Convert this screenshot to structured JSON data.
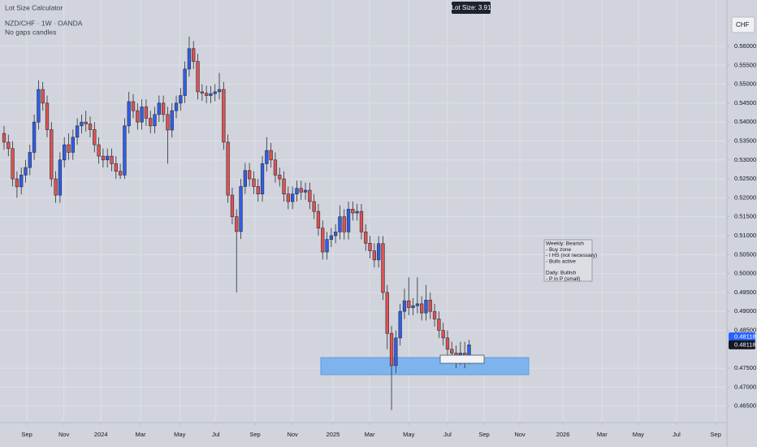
{
  "chart_data": {
    "type": "candlestick",
    "indicator": "Lot Size Calculator",
    "symbol": "NZD/CHF · 1W · OANDA",
    "subtitle": "No gaps candles",
    "lot_size_label": "Lot Size: 3.91",
    "currency": "CHF",
    "last_price": 0.48118,
    "up_color": "#2f5ee8",
    "down_color": "#e05252",
    "grid": true,
    "ylim": [
      0.46064,
      0.57223
    ],
    "yticks": [
      {
        "value": 0.465,
        "label": "0.46500"
      },
      {
        "value": 0.47,
        "label": "0.47000"
      },
      {
        "value": 0.475,
        "label": "0.47500"
      },
      {
        "value": 0.485,
        "label": "0.48500"
      },
      {
        "value": 0.49,
        "label": "0.49000"
      },
      {
        "value": 0.495,
        "label": "0.49500"
      },
      {
        "value": 0.5,
        "label": "0.50000"
      },
      {
        "value": 0.505,
        "label": "0.50500"
      },
      {
        "value": 0.51,
        "label": "0.51000"
      },
      {
        "value": 0.515,
        "label": "0.51500"
      },
      {
        "value": 0.52,
        "label": "0.52000"
      },
      {
        "value": 0.525,
        "label": "0.52500"
      },
      {
        "value": 0.53,
        "label": "0.53000"
      },
      {
        "value": 0.535,
        "label": "0.53500"
      },
      {
        "value": 0.54,
        "label": "0.54000"
      },
      {
        "value": 0.545,
        "label": "0.54500"
      },
      {
        "value": 0.55,
        "label": "0.55000"
      },
      {
        "value": 0.555,
        "label": "0.55500"
      },
      {
        "value": 0.56,
        "label": "0.56000"
      }
    ],
    "xlim": [
      -0.94,
      167.9
    ],
    "xticks": [
      {
        "value": 5.3,
        "label": "Sep"
      },
      {
        "value": 13.9,
        "label": "Nov"
      },
      {
        "value": 22.5,
        "label": "2024"
      },
      {
        "value": 31.7,
        "label": "Mar"
      },
      {
        "value": 40.8,
        "label": "May"
      },
      {
        "value": 49.2,
        "label": "Jul"
      },
      {
        "value": 58.3,
        "label": "Sep"
      },
      {
        "value": 67,
        "label": "Nov"
      },
      {
        "value": 76.4,
        "label": "2025"
      },
      {
        "value": 84.9,
        "label": "Mar"
      },
      {
        "value": 94,
        "label": "May"
      },
      {
        "value": 103,
        "label": "Jul"
      },
      {
        "value": 111.5,
        "label": "Sep"
      },
      {
        "value": 119.8,
        "label": "Nov"
      },
      {
        "value": 129.8,
        "label": "2026"
      },
      {
        "value": 138.9,
        "label": "Mar"
      },
      {
        "value": 147.3,
        "label": "May"
      },
      {
        "value": 156.2,
        "label": "Jul"
      },
      {
        "value": 165.3,
        "label": "Sep"
      }
    ],
    "annotation": [
      [
        "Weekly: Bearish",
        "- Buy zone",
        "- I HS (not necessary)",
        "- Bulls active"
      ],
      [
        "Daily: Bullish",
        "- P in P (small)"
      ]
    ],
    "open": [
      0.537,
      0.5347,
      0.533,
      0.525,
      0.5229,
      0.526,
      0.528,
      0.532,
      0.54,
      0.5486,
      0.545,
      0.538,
      0.525,
      0.5207,
      0.53,
      0.534,
      0.532,
      0.536,
      0.539,
      0.54,
      0.5395,
      0.538,
      0.534,
      0.531,
      0.53,
      0.531,
      0.529,
      0.527,
      0.526,
      0.539,
      0.5454,
      0.543,
      0.54,
      0.544,
      0.541,
      0.539,
      0.542,
      0.545,
      0.542,
      0.5379,
      0.543,
      0.545,
      0.547,
      0.554,
      0.5594,
      0.556,
      0.548,
      0.5476,
      0.547,
      0.5475,
      0.548,
      0.5486,
      0.5347,
      0.5207,
      0.515,
      0.5111,
      0.523,
      0.5272,
      0.525,
      0.523,
      0.521,
      0.529,
      0.5325,
      0.53,
      0.526,
      0.525,
      0.521,
      0.519,
      0.521,
      0.5225,
      0.5215,
      0.522,
      0.519,
      0.5164,
      0.512,
      0.5057,
      0.509,
      0.51,
      0.511,
      0.515,
      0.511,
      0.517,
      0.516,
      0.5164,
      0.511,
      0.508,
      0.506,
      0.5036,
      0.5079,
      0.495,
      0.4842,
      0.4757,
      0.483,
      0.49,
      0.4928,
      0.491,
      0.4915,
      0.492,
      0.4896,
      0.493,
      0.49,
      0.488,
      0.485,
      0.483,
      0.48,
      0.479,
      0.4778,
      0.479,
      0.477
    ],
    "high": [
      0.539,
      0.5367,
      0.535,
      0.527,
      0.528,
      0.53,
      0.534,
      0.542,
      0.551,
      0.5506,
      0.547,
      0.54,
      0.527,
      0.532,
      0.536,
      0.537,
      0.538,
      0.541,
      0.542,
      0.543,
      0.5415,
      0.54,
      0.536,
      0.533,
      0.533,
      0.533,
      0.531,
      0.529,
      0.541,
      0.548,
      0.5474,
      0.545,
      0.546,
      0.546,
      0.543,
      0.544,
      0.547,
      0.547,
      0.544,
      0.545,
      0.547,
      0.549,
      0.556,
      0.5626,
      0.5614,
      0.558,
      0.55,
      0.5496,
      0.5495,
      0.55,
      0.553,
      0.5506,
      0.5367,
      0.5227,
      0.517,
      0.525,
      0.5292,
      0.5292,
      0.527,
      0.525,
      0.531,
      0.536,
      0.5345,
      0.532,
      0.528,
      0.527,
      0.523,
      0.523,
      0.5245,
      0.5245,
      0.524,
      0.524,
      0.521,
      0.5184,
      0.514,
      0.511,
      0.512,
      0.513,
      0.518,
      0.517,
      0.519,
      0.519,
      0.5184,
      0.5184,
      0.513,
      0.51,
      0.508,
      0.5099,
      0.5099,
      0.497,
      0.4862,
      0.485,
      0.492,
      0.496,
      0.499,
      0.4935,
      0.499,
      0.494,
      0.497,
      0.495,
      0.492,
      0.49,
      0.487,
      0.485,
      0.482,
      0.481,
      0.482,
      0.482,
      0.4825
    ],
    "low": [
      0.5327,
      0.531,
      0.523,
      0.52,
      0.5209,
      0.524,
      0.526,
      0.53,
      0.538,
      0.543,
      0.536,
      0.523,
      0.5187,
      0.5187,
      0.528,
      0.53,
      0.53,
      0.534,
      0.537,
      0.5375,
      0.536,
      0.532,
      0.529,
      0.528,
      0.528,
      0.527,
      0.525,
      0.525,
      0.525,
      0.537,
      0.541,
      0.538,
      0.538,
      0.539,
      0.537,
      0.537,
      0.54,
      0.54,
      0.529,
      0.5359,
      0.541,
      0.543,
      0.545,
      0.552,
      0.554,
      0.546,
      0.5456,
      0.545,
      0.545,
      0.5455,
      0.546,
      0.5327,
      0.5187,
      0.513,
      0.495,
      0.5091,
      0.521,
      0.523,
      0.521,
      0.519,
      0.519,
      0.527,
      0.528,
      0.524,
      0.523,
      0.519,
      0.517,
      0.517,
      0.519,
      0.5195,
      0.5195,
      0.517,
      0.5144,
      0.51,
      0.5037,
      0.5037,
      0.507,
      0.508,
      0.509,
      0.509,
      0.509,
      0.514,
      0.514,
      0.509,
      0.506,
      0.504,
      0.5016,
      0.5016,
      0.493,
      0.48,
      0.4639,
      0.4737,
      0.481,
      0.488,
      0.489,
      0.489,
      0.4895,
      0.4876,
      0.4876,
      0.488,
      0.486,
      0.483,
      0.481,
      0.478,
      0.477,
      0.475,
      0.4758,
      0.475,
      0.476
    ],
    "close": [
      0.5347,
      0.533,
      0.525,
      0.5229,
      0.526,
      0.528,
      0.532,
      0.54,
      0.5486,
      0.545,
      0.538,
      0.525,
      0.5207,
      0.53,
      0.534,
      0.532,
      0.536,
      0.539,
      0.54,
      0.5395,
      0.538,
      0.534,
      0.531,
      0.53,
      0.531,
      0.529,
      0.527,
      0.526,
      0.539,
      0.5454,
      0.543,
      0.54,
      0.544,
      0.541,
      0.539,
      0.542,
      0.545,
      0.542,
      0.5379,
      0.543,
      0.545,
      0.547,
      0.554,
      0.5594,
      0.556,
      0.548,
      0.5476,
      0.547,
      0.5475,
      0.548,
      0.5486,
      0.5347,
      0.5207,
      0.515,
      0.5111,
      0.523,
      0.5272,
      0.525,
      0.523,
      0.521,
      0.529,
      0.5325,
      0.53,
      0.526,
      0.525,
      0.521,
      0.519,
      0.521,
      0.5225,
      0.5215,
      0.522,
      0.519,
      0.5164,
      0.512,
      0.5057,
      0.509,
      0.51,
      0.511,
      0.515,
      0.511,
      0.517,
      0.516,
      0.5164,
      0.511,
      0.508,
      0.506,
      0.5036,
      0.5079,
      0.495,
      0.4842,
      0.4757,
      0.483,
      0.49,
      0.4928,
      0.491,
      0.4915,
      0.492,
      0.4896,
      0.493,
      0.49,
      0.488,
      0.485,
      0.483,
      0.48,
      0.479,
      0.4778,
      0.479,
      0.477,
      0.48118
    ]
  }
}
